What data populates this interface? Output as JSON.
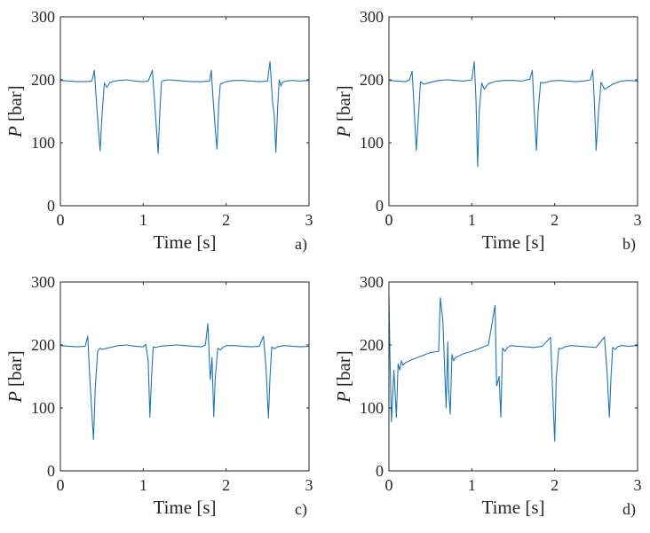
{
  "chart_data": [
    {
      "type": "line",
      "panel_label": "a)",
      "xlabel": "Time [s]",
      "ylabel_symbol": "P",
      "ylabel_unit": "[bar]",
      "xlim": [
        0,
        3
      ],
      "ylim": [
        0,
        300
      ],
      "xticks": [
        0,
        1,
        2,
        3
      ],
      "yticks": [
        0,
        100,
        200,
        300
      ],
      "series": [
        {
          "name": "pressure",
          "x": [
            0,
            0.1,
            0.2,
            0.3,
            0.38,
            0.41,
            0.43,
            0.46,
            0.48,
            0.5,
            0.53,
            0.56,
            0.6,
            0.7,
            0.8,
            0.9,
            1.0,
            1.06,
            1.11,
            1.13,
            1.16,
            1.18,
            1.2,
            1.22,
            1.25,
            1.3,
            1.4,
            1.5,
            1.6,
            1.7,
            1.8,
            1.82,
            1.84,
            1.87,
            1.89,
            1.91,
            1.93,
            1.96,
            2.0,
            2.1,
            2.2,
            2.3,
            2.4,
            2.5,
            2.53,
            2.56,
            2.58,
            2.6,
            2.62,
            2.64,
            2.66,
            2.68,
            2.72,
            2.8,
            2.9,
            3.0
          ],
          "y": [
            199,
            198,
            197,
            197,
            198,
            215,
            175,
            120,
            87,
            140,
            195,
            188,
            196,
            199,
            200,
            198,
            197,
            198,
            215,
            178,
            120,
            83,
            150,
            197,
            199,
            200,
            199,
            198,
            197,
            197,
            198,
            215,
            175,
            120,
            90,
            160,
            193,
            195,
            197,
            199,
            199,
            198,
            197,
            198,
            229,
            165,
            145,
            85,
            150,
            200,
            190,
            196,
            198,
            199,
            198,
            199
          ]
        }
      ]
    },
    {
      "type": "line",
      "panel_label": "b)",
      "xlabel": "Time [s]",
      "ylabel_symbol": "P",
      "ylabel_unit": "[bar]",
      "xlim": [
        0,
        3
      ],
      "ylim": [
        0,
        300
      ],
      "xticks": [
        0,
        1,
        2,
        3
      ],
      "yticks": [
        0,
        100,
        200,
        300
      ],
      "series": [
        {
          "name": "pressure",
          "x": [
            0,
            0.1,
            0.2,
            0.25,
            0.28,
            0.3,
            0.33,
            0.36,
            0.38,
            0.42,
            0.5,
            0.6,
            0.7,
            0.8,
            0.9,
            1.0,
            1.03,
            1.05,
            1.07,
            1.09,
            1.12,
            1.15,
            1.2,
            1.3,
            1.4,
            1.5,
            1.6,
            1.7,
            1.73,
            1.75,
            1.78,
            1.8,
            1.83,
            1.87,
            1.95,
            2.05,
            2.15,
            2.25,
            2.35,
            2.43,
            2.46,
            2.48,
            2.5,
            2.53,
            2.56,
            2.6,
            2.7,
            2.8,
            2.9,
            3.0
          ],
          "y": [
            199,
            198,
            197,
            200,
            214,
            165,
            88,
            150,
            197,
            193,
            196,
            199,
            200,
            199,
            198,
            200,
            229,
            170,
            62,
            150,
            195,
            185,
            194,
            198,
            199,
            199,
            198,
            201,
            215,
            160,
            88,
            150,
            196,
            195,
            198,
            199,
            198,
            197,
            198,
            200,
            215,
            160,
            88,
            150,
            196,
            185,
            193,
            198,
            199,
            198
          ]
        }
      ]
    },
    {
      "type": "line",
      "panel_label": "c)",
      "xlabel": "Time [s]",
      "ylabel_symbol": "P",
      "ylabel_unit": "[bar]",
      "xlim": [
        0,
        3
      ],
      "ylim": [
        0,
        300
      ],
      "xticks": [
        0,
        1,
        2,
        3
      ],
      "yticks": [
        0,
        100,
        200,
        300
      ],
      "series": [
        {
          "name": "pressure",
          "x": [
            0,
            0.1,
            0.2,
            0.3,
            0.33,
            0.35,
            0.38,
            0.4,
            0.42,
            0.45,
            0.48,
            0.5,
            0.6,
            0.7,
            0.8,
            0.9,
            1.0,
            1.03,
            1.06,
            1.08,
            1.1,
            1.12,
            1.15,
            1.2,
            1.3,
            1.4,
            1.5,
            1.6,
            1.7,
            1.75,
            1.78,
            1.8,
            1.81,
            1.83,
            1.85,
            1.87,
            1.9,
            1.93,
            1.96,
            2.0,
            2.1,
            2.2,
            2.3,
            2.4,
            2.45,
            2.48,
            2.51,
            2.53,
            2.55,
            2.58,
            2.62,
            2.7,
            2.8,
            2.9,
            3.0
          ],
          "y": [
            199,
            198,
            197,
            198,
            214,
            160,
            90,
            50,
            130,
            190,
            195,
            193,
            196,
            199,
            200,
            198,
            197,
            201,
            175,
            85,
            150,
            197,
            196,
            198,
            199,
            200,
            199,
            198,
            197,
            200,
            234,
            170,
            145,
            180,
            86,
            150,
            195,
            192,
            196,
            199,
            199,
            198,
            197,
            198,
            214,
            165,
            84,
            150,
            197,
            194,
            197,
            199,
            198,
            197,
            198
          ]
        }
      ]
    },
    {
      "type": "line",
      "panel_label": "d)",
      "xlabel": "Time [s]",
      "ylabel_symbol": "P",
      "ylabel_unit": "[bar]",
      "xlim": [
        0,
        3
      ],
      "ylim": [
        0,
        300
      ],
      "xticks": [
        0,
        1,
        2,
        3
      ],
      "yticks": [
        0,
        100,
        200,
        300
      ],
      "series": [
        {
          "name": "pressure",
          "x": [
            0,
            0.01,
            0.03,
            0.06,
            0.09,
            0.11,
            0.13,
            0.15,
            0.17,
            0.2,
            0.3,
            0.4,
            0.5,
            0.6,
            0.62,
            0.65,
            0.69,
            0.71,
            0.72,
            0.74,
            0.76,
            0.78,
            0.8,
            0.85,
            0.9,
            1.0,
            1.1,
            1.2,
            1.28,
            1.3,
            1.33,
            1.35,
            1.37,
            1.4,
            1.43,
            1.47,
            1.55,
            1.65,
            1.75,
            1.85,
            1.95,
            1.98,
            2.0,
            2.02,
            2.05,
            2.08,
            2.12,
            2.2,
            2.3,
            2.4,
            2.5,
            2.6,
            2.63,
            2.66,
            2.68,
            2.7,
            2.73,
            2.76,
            2.8,
            2.9,
            3.0
          ],
          "y": [
            278,
            200,
            78,
            160,
            85,
            170,
            160,
            175,
            168,
            172,
            178,
            183,
            188,
            190,
            275,
            240,
            100,
            205,
            130,
            90,
            185,
            175,
            180,
            183,
            186,
            190,
            195,
            200,
            263,
            135,
            150,
            85,
            195,
            190,
            196,
            199,
            198,
            197,
            196,
            198,
            212,
            110,
            47,
            150,
            195,
            194,
            197,
            199,
            198,
            197,
            196,
            213,
            160,
            85,
            150,
            196,
            193,
            197,
            199,
            198,
            199
          ]
        }
      ]
    }
  ],
  "colors": {
    "series": "#1f77b4",
    "axes": "#262626",
    "background": "#ffffff"
  }
}
